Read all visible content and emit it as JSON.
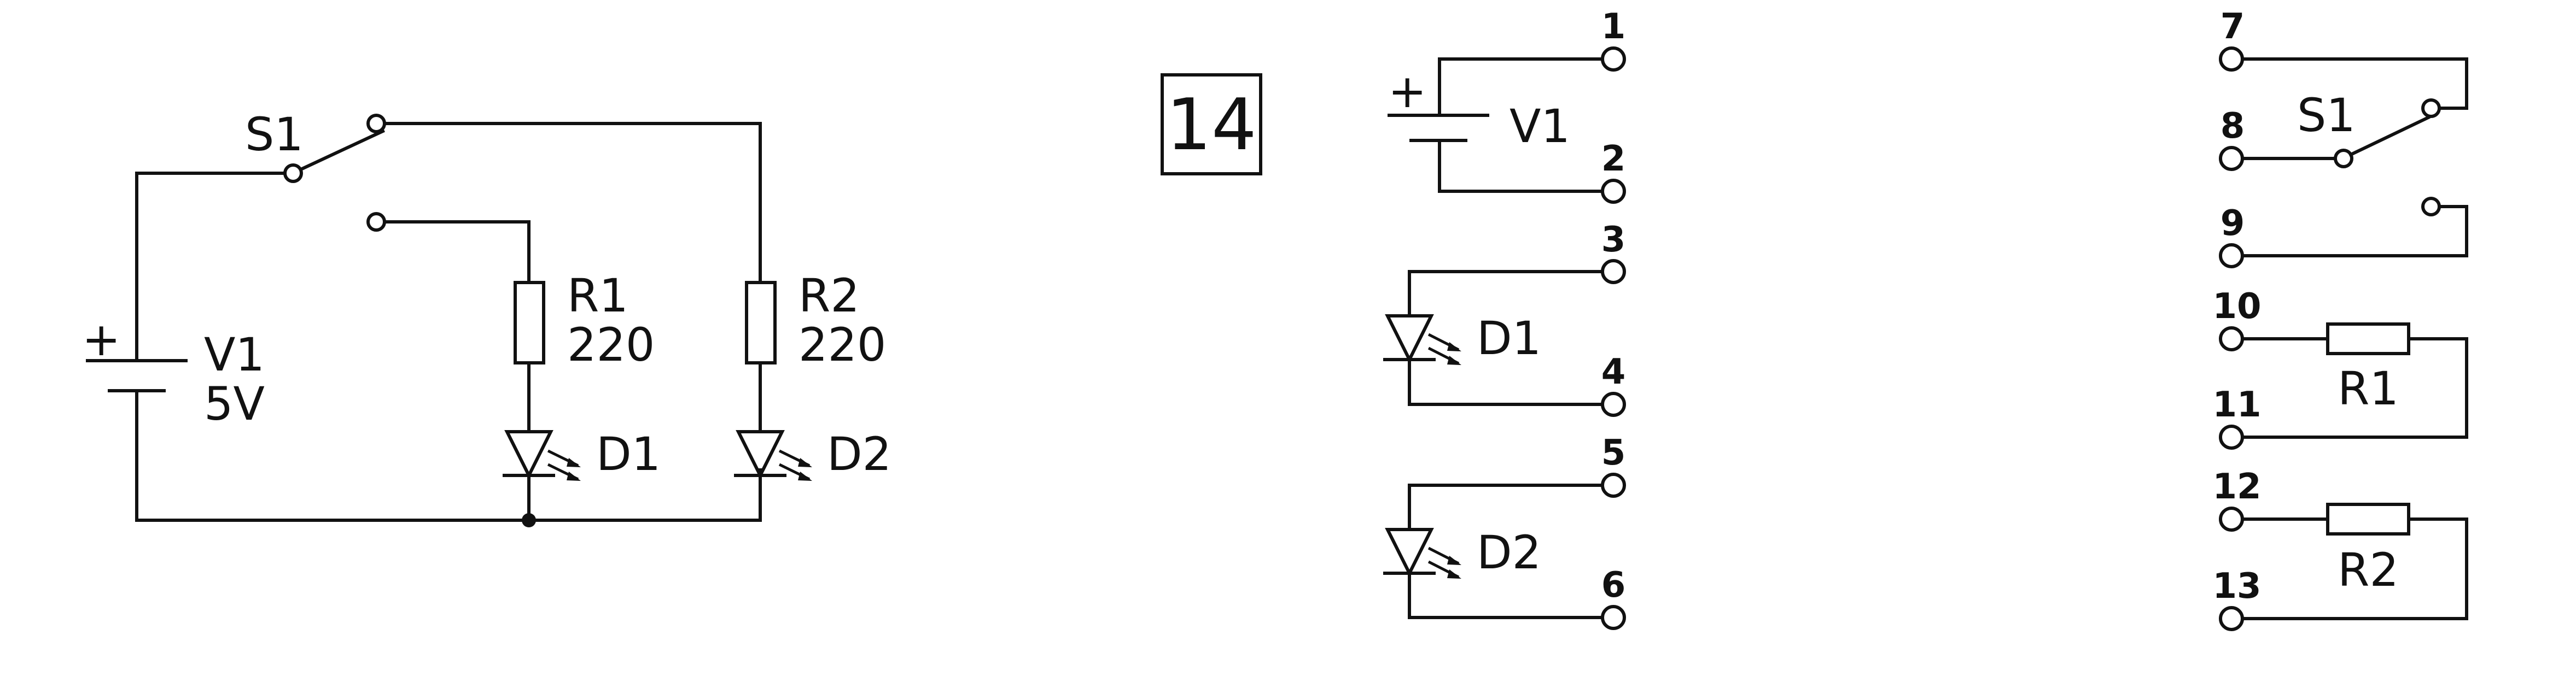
{
  "left_circuit": {
    "switch_label": "S1",
    "battery_plus": "+",
    "battery_name": "V1",
    "battery_value": "5V",
    "r1_name": "R1",
    "r1_value": "220",
    "r2_name": "R2",
    "r2_value": "220",
    "d1_name": "D1",
    "d2_name": "D2"
  },
  "figure_number": "14",
  "middle_parts": {
    "battery_plus": "+",
    "battery_name": "V1",
    "d1_name": "D1",
    "d2_name": "D2",
    "pins": [
      "1",
      "2",
      "3",
      "4",
      "5",
      "6"
    ]
  },
  "right_parts": {
    "switch_name": "S1",
    "r1_name": "R1",
    "r2_name": "R2",
    "pins": [
      "7",
      "8",
      "9",
      "10",
      "11",
      "12",
      "13"
    ]
  }
}
